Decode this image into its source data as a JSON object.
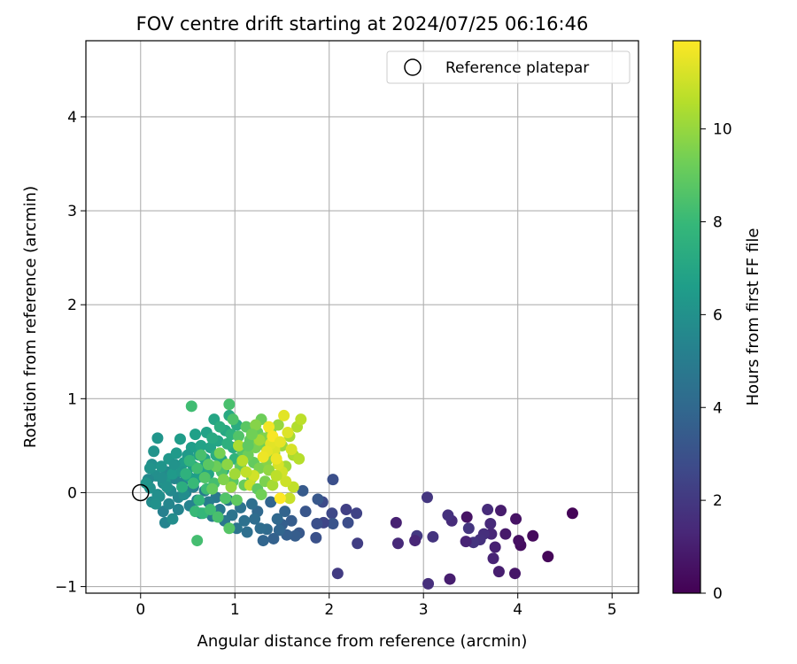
{
  "chart_data": {
    "type": "scatter",
    "title": "FOV centre drift starting at 2024/07/25 06:16:46",
    "xlabel": "Angular distance from reference (arcmin)",
    "ylabel": "Rotation from reference (arcmin)",
    "xlim": [
      -0.58,
      5.28
    ],
    "ylim": [
      -1.07,
      4.81
    ],
    "xticks": [
      0,
      1,
      2,
      3,
      4,
      5
    ],
    "yticks": [
      -1,
      0,
      1,
      2,
      3,
      4
    ],
    "grid": true,
    "legend": {
      "placement": "top-right",
      "label": "Reference platepar"
    },
    "reference_point": {
      "x": 0,
      "y": 0
    },
    "colorbar": {
      "label": "Hours from first FF file",
      "colormap": "viridis",
      "range": [
        0,
        11.9
      ],
      "ticks": [
        0,
        2,
        4,
        6,
        8,
        10
      ]
    },
    "colormap_stops": [
      "#440154",
      "#482878",
      "#3e4989",
      "#31688e",
      "#26828e",
      "#1f9e89",
      "#35b779",
      "#6ece58",
      "#b5de2b",
      "#fde725"
    ],
    "points": [
      [
        4.58,
        -0.22,
        0.1
      ],
      [
        4.32,
        -0.68,
        0.2
      ],
      [
        4.16,
        -0.46,
        0.3
      ],
      [
        4.03,
        -0.56,
        0.4
      ],
      [
        4.01,
        -0.51,
        0.5
      ],
      [
        3.98,
        -0.28,
        0.6
      ],
      [
        3.97,
        -0.86,
        0.7
      ],
      [
        3.87,
        -0.44,
        0.8
      ],
      [
        3.82,
        -0.19,
        0.9
      ],
      [
        3.8,
        -0.84,
        1.0
      ],
      [
        3.76,
        -0.58,
        1.1
      ],
      [
        3.74,
        -0.7,
        1.2
      ],
      [
        3.72,
        -0.44,
        1.3
      ],
      [
        3.71,
        -0.33,
        1.4
      ],
      [
        3.68,
        -0.18,
        1.5
      ],
      [
        3.64,
        -0.44,
        1.6
      ],
      [
        3.6,
        -0.5,
        1.7
      ],
      [
        3.53,
        -0.53,
        1.8
      ],
      [
        3.48,
        -0.38,
        1.9
      ],
      [
        3.46,
        -0.26,
        0.6
      ],
      [
        3.45,
        -0.52,
        1.2
      ],
      [
        3.3,
        -0.3,
        1.5
      ],
      [
        3.28,
        -0.92,
        1.0
      ],
      [
        3.26,
        -0.24,
        1.7
      ],
      [
        3.1,
        -0.47,
        1.8
      ],
      [
        3.05,
        -0.97,
        1.6
      ],
      [
        3.04,
        -0.05,
        1.9
      ],
      [
        2.93,
        -0.46,
        2.0
      ],
      [
        2.91,
        -0.51,
        1.3
      ],
      [
        2.73,
        -0.54,
        1.4
      ],
      [
        2.71,
        -0.32,
        1.1
      ],
      [
        2.3,
        -0.54,
        2.2
      ],
      [
        2.29,
        -0.22,
        2.4
      ],
      [
        2.2,
        -0.32,
        2.8
      ],
      [
        2.18,
        -0.18,
        2.3
      ],
      [
        2.09,
        -0.86,
        2.1
      ],
      [
        2.04,
        0.14,
        2.9
      ],
      [
        2.03,
        -0.22,
        2.6
      ],
      [
        2.04,
        -0.33,
        3.1
      ],
      [
        1.94,
        -0.32,
        2.5
      ],
      [
        1.93,
        -0.1,
        2.7
      ],
      [
        1.88,
        -0.07,
        3.3
      ],
      [
        1.87,
        -0.33,
        2.9
      ],
      [
        1.86,
        -0.48,
        3.0
      ],
      [
        1.75,
        -0.2,
        3.2
      ],
      [
        1.72,
        0.02,
        3.4
      ],
      [
        1.68,
        -0.43,
        3.3
      ],
      [
        1.64,
        -0.46,
        3.5
      ],
      [
        1.6,
        -0.3,
        3.5
      ],
      [
        1.55,
        -0.45,
        3.6
      ],
      [
        1.53,
        -0.2,
        3.8
      ],
      [
        1.5,
        -0.34,
        3.6
      ],
      [
        1.47,
        -0.4,
        3.9
      ],
      [
        1.45,
        -0.28,
        4.0
      ],
      [
        1.41,
        -0.49,
        3.7
      ],
      [
        1.38,
        -0.1,
        3.9
      ],
      [
        1.34,
        -0.39,
        4.1
      ],
      [
        1.3,
        -0.51,
        3.9
      ],
      [
        1.27,
        -0.38,
        4.2
      ],
      [
        1.24,
        -0.2,
        4.0
      ],
      [
        1.21,
        -0.28,
        4.2
      ],
      [
        1.18,
        -0.12,
        4.3
      ],
      [
        1.13,
        -0.42,
        4.3
      ],
      [
        1.1,
        -0.3,
        4.4
      ],
      [
        1.06,
        -0.16,
        4.5
      ],
      [
        1.02,
        -0.38,
        4.6
      ],
      [
        0.97,
        -0.24,
        4.6
      ],
      [
        0.93,
        -0.08,
        4.7
      ],
      [
        0.89,
        -0.3,
        4.7
      ],
      [
        0.84,
        -0.18,
        4.8
      ],
      [
        0.8,
        -0.05,
        4.8
      ],
      [
        0.76,
        -0.25,
        4.9
      ],
      [
        0.72,
        -0.1,
        5.0
      ],
      [
        0.68,
        0.02,
        5.0
      ],
      [
        0.64,
        -0.22,
        5.1
      ],
      [
        0.6,
        -0.08,
        5.2
      ],
      [
        0.56,
        0.06,
        5.2
      ],
      [
        0.52,
        -0.14,
        5.3
      ],
      [
        0.48,
        0.0,
        5.3
      ],
      [
        0.44,
        0.1,
        5.4
      ],
      [
        0.4,
        -0.05,
        5.5
      ],
      [
        0.36,
        0.15,
        5.5
      ],
      [
        0.32,
        0.02,
        5.6
      ],
      [
        0.28,
        0.22,
        5.7
      ],
      [
        0.24,
        0.1,
        5.7
      ],
      [
        0.2,
        -0.04,
        5.8
      ],
      [
        0.16,
        0.18,
        5.9
      ],
      [
        0.12,
        0.3,
        5.9
      ],
      [
        0.1,
        0.05,
        6.0
      ],
      [
        0.14,
        0.44,
        6.1
      ],
      [
        0.18,
        0.58,
        6.2
      ],
      [
        0.22,
        0.28,
        6.2
      ],
      [
        0.26,
        0.12,
        6.3
      ],
      [
        0.3,
        0.36,
        6.3
      ],
      [
        0.34,
        0.2,
        6.4
      ],
      [
        0.38,
        0.42,
        6.4
      ],
      [
        0.42,
        0.57,
        6.5
      ],
      [
        0.46,
        0.32,
        6.5
      ],
      [
        0.5,
        0.18,
        6.6
      ],
      [
        0.54,
        0.48,
        6.6
      ],
      [
        0.58,
        0.62,
        6.7
      ],
      [
        0.62,
        0.4,
        6.7
      ],
      [
        0.66,
        0.26,
        6.8
      ],
      [
        0.7,
        0.64,
        6.8
      ],
      [
        0.74,
        0.48,
        6.9
      ],
      [
        0.78,
        0.78,
        7.0
      ],
      [
        0.82,
        0.55,
        7.0
      ],
      [
        0.86,
        0.35,
        7.1
      ],
      [
        0.9,
        0.66,
        7.1
      ],
      [
        0.94,
        0.82,
        7.2
      ],
      [
        0.98,
        0.48,
        7.2
      ],
      [
        1.02,
        0.72,
        7.3
      ],
      [
        0.08,
        0.14,
        5.6
      ],
      [
        0.12,
        -0.1,
        5.7
      ],
      [
        0.18,
        -0.02,
        5.9
      ],
      [
        0.24,
        -0.2,
        5.2
      ],
      [
        0.26,
        -0.32,
        5.4
      ],
      [
        0.34,
        -0.28,
        5.8
      ],
      [
        0.16,
        -0.12,
        6.0
      ],
      [
        0.06,
        0.1,
        6.2
      ],
      [
        0.1,
        0.26,
        6.1
      ],
      [
        0.3,
        -0.12,
        5.5
      ],
      [
        0.4,
        -0.18,
        5.4
      ],
      [
        0.46,
        -0.02,
        5.8
      ],
      [
        0.28,
        0.06,
        6.0
      ],
      [
        0.22,
        0.16,
        5.9
      ],
      [
        0.36,
        0.3,
        6.1
      ],
      [
        0.44,
        0.22,
        6.3
      ],
      [
        0.5,
        0.4,
        6.4
      ],
      [
        0.56,
        0.28,
        6.5
      ],
      [
        0.6,
        0.16,
        6.6
      ],
      [
        0.64,
        0.5,
        6.8
      ],
      [
        0.68,
        0.36,
        6.9
      ],
      [
        0.72,
        0.2,
        7.0
      ],
      [
        0.76,
        0.58,
        7.2
      ],
      [
        0.8,
        0.4,
        7.3
      ],
      [
        0.84,
        0.7,
        7.4
      ],
      [
        0.88,
        0.24,
        7.2
      ],
      [
        0.92,
        0.52,
        7.5
      ],
      [
        0.96,
        0.62,
        7.6
      ],
      [
        1.0,
        0.36,
        7.7
      ],
      [
        0.54,
        0.92,
        8.2
      ],
      [
        0.94,
        0.94,
        8.4
      ],
      [
        0.98,
        0.78,
        8.5
      ],
      [
        1.04,
        0.6,
        8.6
      ],
      [
        1.08,
        0.44,
        8.7
      ],
      [
        1.12,
        0.7,
        8.8
      ],
      [
        1.16,
        0.56,
        8.9
      ],
      [
        1.2,
        0.32,
        9.0
      ],
      [
        1.24,
        0.64,
        9.1
      ],
      [
        1.28,
        0.78,
        9.2
      ],
      [
        1.32,
        0.5,
        9.3
      ],
      [
        0.6,
        -0.51,
        8.3
      ],
      [
        0.58,
        -0.2,
        8.0
      ],
      [
        0.62,
        -0.08,
        7.8
      ],
      [
        0.66,
        -0.22,
        7.9
      ],
      [
        0.7,
        0.04,
        8.1
      ],
      [
        0.74,
        -0.18,
        8.2
      ],
      [
        0.78,
        0.1,
        8.3
      ],
      [
        0.82,
        -0.26,
        8.4
      ],
      [
        0.86,
        0.22,
        8.5
      ],
      [
        0.9,
        -0.06,
        8.6
      ],
      [
        0.94,
        -0.38,
        8.7
      ],
      [
        0.98,
        0.12,
        8.8
      ],
      [
        1.02,
        -0.08,
        8.9
      ],
      [
        1.06,
        0.28,
        9.0
      ],
      [
        1.1,
        0.08,
        9.1
      ],
      [
        1.14,
        0.4,
        9.2
      ],
      [
        1.18,
        0.16,
        9.3
      ],
      [
        1.22,
        0.48,
        9.4
      ],
      [
        1.26,
        0.26,
        9.5
      ],
      [
        1.3,
        0.58,
        9.6
      ],
      [
        1.34,
        0.34,
        9.7
      ],
      [
        1.38,
        0.66,
        9.8
      ],
      [
        1.42,
        0.42,
        9.9
      ],
      [
        1.46,
        0.72,
        10.0
      ],
      [
        1.5,
        0.5,
        10.1
      ],
      [
        1.54,
        0.28,
        10.2
      ],
      [
        1.58,
        0.6,
        10.3
      ],
      [
        1.62,
        0.4,
        10.4
      ],
      [
        1.66,
        0.7,
        10.5
      ],
      [
        1.68,
        0.36,
        10.6
      ],
      [
        1.7,
        0.78,
        10.7
      ],
      [
        1.62,
        0.06,
        10.8
      ],
      [
        1.58,
        -0.06,
        10.9
      ],
      [
        1.54,
        0.12,
        11.0
      ],
      [
        1.5,
        0.22,
        11.1
      ],
      [
        1.46,
        0.3,
        11.2
      ],
      [
        1.42,
        0.46,
        11.3
      ],
      [
        1.38,
        0.52,
        11.4
      ],
      [
        1.34,
        0.44,
        11.5
      ],
      [
        1.3,
        0.38,
        11.6
      ],
      [
        1.36,
        0.7,
        11.7
      ],
      [
        1.4,
        0.6,
        11.8
      ],
      [
        1.44,
        0.36,
        11.6
      ],
      [
        1.48,
        0.54,
        11.5
      ],
      [
        1.52,
        0.82,
        11.4
      ],
      [
        1.56,
        0.64,
        11.3
      ],
      [
        1.6,
        0.46,
        11.2
      ],
      [
        1.48,
        -0.06,
        11.9
      ],
      [
        1.2,
        0.18,
        11.1
      ],
      [
        1.16,
        0.08,
        10.9
      ],
      [
        1.12,
        0.22,
        10.8
      ],
      [
        1.08,
        0.34,
        10.6
      ],
      [
        1.04,
        0.5,
        10.4
      ],
      [
        1.0,
        0.2,
        10.2
      ],
      [
        0.96,
        0.06,
        10.0
      ],
      [
        0.92,
        0.3,
        9.8
      ],
      [
        0.88,
        0.14,
        9.6
      ],
      [
        0.84,
        0.42,
        9.4
      ],
      [
        0.8,
        0.28,
        9.2
      ],
      [
        0.76,
        0.04,
        9.0
      ],
      [
        0.72,
        0.3,
        8.8
      ],
      [
        0.68,
        0.16,
        8.6
      ],
      [
        0.64,
        0.4,
        8.4
      ],
      [
        0.6,
        0.26,
        8.2
      ],
      [
        0.56,
        0.1,
        8.0
      ],
      [
        0.52,
        0.34,
        7.8
      ],
      [
        0.48,
        0.2,
        7.6
      ],
      [
        0.44,
        0.06,
        7.4
      ],
      [
        1.24,
        0.04,
        8.9
      ],
      [
        1.28,
        -0.02,
        9.3
      ],
      [
        1.32,
        0.12,
        9.5
      ],
      [
        1.36,
        0.24,
        9.9
      ],
      [
        1.4,
        0.08,
        10.3
      ],
      [
        1.44,
        0.18,
        10.7
      ],
      [
        1.26,
        0.56,
        10.2
      ],
      [
        1.22,
        0.72,
        9.7
      ],
      [
        1.18,
        0.62,
        9.3
      ],
      [
        1.14,
        0.5,
        8.9
      ]
    ]
  }
}
